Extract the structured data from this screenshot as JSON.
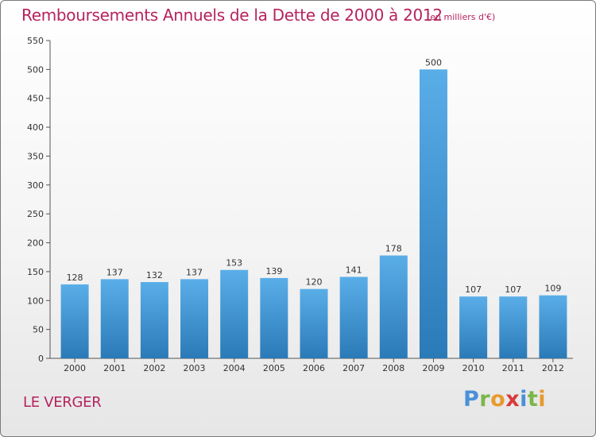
{
  "header": {
    "title": "Remboursements Annuels de la Dette de 2000 à 2012",
    "unit": "(en milliers d'€)"
  },
  "footer": {
    "commune": "LE VERGER",
    "logo_letters": [
      "P",
      "r",
      "o",
      "x",
      "i",
      "t",
      "i"
    ],
    "logo_colors": [
      "#4a90d9",
      "#7ab648",
      "#e89a2c",
      "#d93a3a",
      "#4a90d9",
      "#7ab648",
      "#e89a2c"
    ]
  },
  "chart_data": {
    "type": "bar",
    "categories": [
      "2000",
      "2001",
      "2002",
      "2003",
      "2004",
      "2005",
      "2006",
      "2007",
      "2008",
      "2009",
      "2010",
      "2011",
      "2012"
    ],
    "values": [
      128,
      137,
      132,
      137,
      153,
      139,
      120,
      141,
      178,
      500,
      107,
      107,
      109
    ],
    "title": "Remboursements Annuels de la Dette de 2000 à 2012",
    "xlabel": "",
    "ylabel": "",
    "ylim": [
      0,
      550
    ],
    "yticks": [
      0,
      50,
      100,
      150,
      200,
      250,
      300,
      350,
      400,
      450,
      500,
      550
    ],
    "grid": false,
    "bar_color_top": "#5aaee8",
    "bar_color_bottom": "#2a7ab8",
    "label_color": "#333333",
    "axis_color": "#555555"
  }
}
